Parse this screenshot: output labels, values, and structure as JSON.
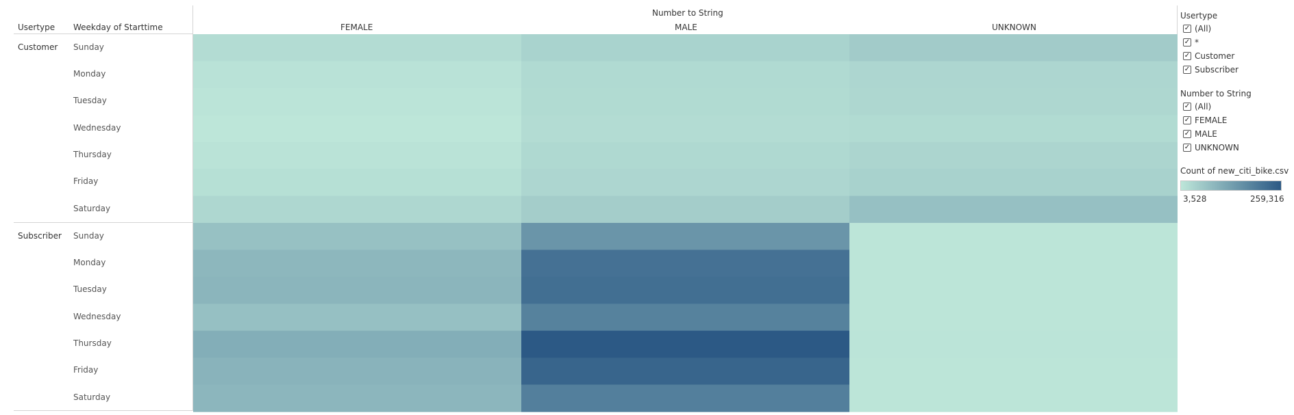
{
  "header": {
    "usertype_col": "Usertype",
    "weekday_col": "Weekday of Starttime",
    "column_field": "Number to String"
  },
  "chart_data": {
    "type": "heatmap",
    "title": "",
    "columns": [
      "FEMALE",
      "MALE",
      "UNKNOWN"
    ],
    "groups": [
      {
        "name": "Customer",
        "rows": [
          "Sunday",
          "Monday",
          "Tuesday",
          "Wednesday",
          "Thursday",
          "Friday",
          "Saturday"
        ],
        "values": [
          [
            22000,
            38000,
            52000
          ],
          [
            10000,
            26000,
            32000
          ],
          [
            7000,
            24000,
            30000
          ],
          [
            3528,
            21000,
            24000
          ],
          [
            9000,
            28000,
            34000
          ],
          [
            15000,
            32000,
            40000
          ],
          [
            30000,
            48000,
            72000
          ]
        ]
      },
      {
        "name": "Subscriber",
        "rows": [
          "Sunday",
          "Monday",
          "Tuesday",
          "Wednesday",
          "Thursday",
          "Friday",
          "Saturday"
        ],
        "values": [
          [
            70000,
            150000,
            6000
          ],
          [
            88000,
            215000,
            6000
          ],
          [
            92000,
            220000,
            6000
          ],
          [
            72000,
            185000,
            5500
          ],
          [
            105000,
            259316,
            6500
          ],
          [
            96000,
            238000,
            6000
          ],
          [
            90000,
            190000,
            6000
          ]
        ]
      }
    ],
    "color_scale": {
      "min": 3528,
      "max": 259316,
      "min_color": "#bde6d9",
      "max_color": "#2c5985"
    }
  },
  "legend": {
    "title": "Count of new_citi_bike.csv",
    "min_label": "3,528",
    "max_label": "259,316"
  },
  "filters": {
    "usertype": {
      "title": "Usertype",
      "items": [
        "(All)",
        "*",
        "Customer",
        "Subscriber"
      ]
    },
    "number_to_string": {
      "title": "Number to String",
      "items": [
        "(All)",
        "FEMALE",
        "MALE",
        "UNKNOWN"
      ]
    },
    "check_glyph": "✓"
  }
}
